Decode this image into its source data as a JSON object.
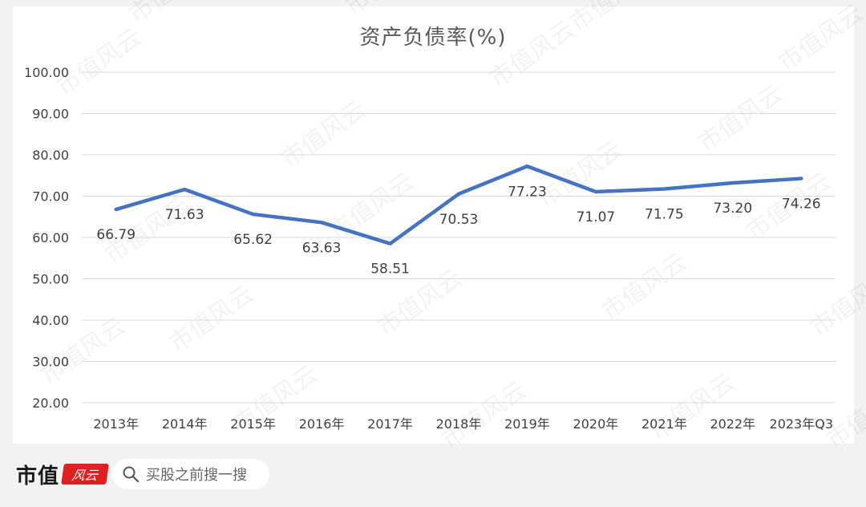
{
  "chart_data": {
    "type": "line",
    "title": "资产负债率(%)",
    "categories": [
      "2013年",
      "2014年",
      "2015年",
      "2016年",
      "2017年",
      "2018年",
      "2019年",
      "2020年",
      "2021年",
      "2022年",
      "2023年Q3"
    ],
    "series": [
      {
        "values": [
          66.79,
          71.63,
          65.62,
          63.63,
          58.51,
          70.53,
          77.23,
          71.07,
          71.75,
          73.2,
          74.26
        ],
        "labels": [
          "66.79",
          "71.63",
          "65.62",
          "63.63",
          "58.51",
          "70.53",
          "77.23",
          "71.07",
          "71.75",
          "73.20",
          "74.26"
        ],
        "color": "#4472c4"
      }
    ],
    "ylim": [
      20,
      100
    ],
    "yticks": [
      "20.00",
      "30.00",
      "40.00",
      "50.00",
      "60.00",
      "70.00",
      "80.00",
      "90.00",
      "100.00"
    ],
    "grid": true,
    "legend": "none"
  },
  "footer": {
    "brand": "市值",
    "brand_mark": "风云",
    "search_icon": "search-icon",
    "search_text": "买股之前搜一搜"
  },
  "watermark": "市值风云"
}
